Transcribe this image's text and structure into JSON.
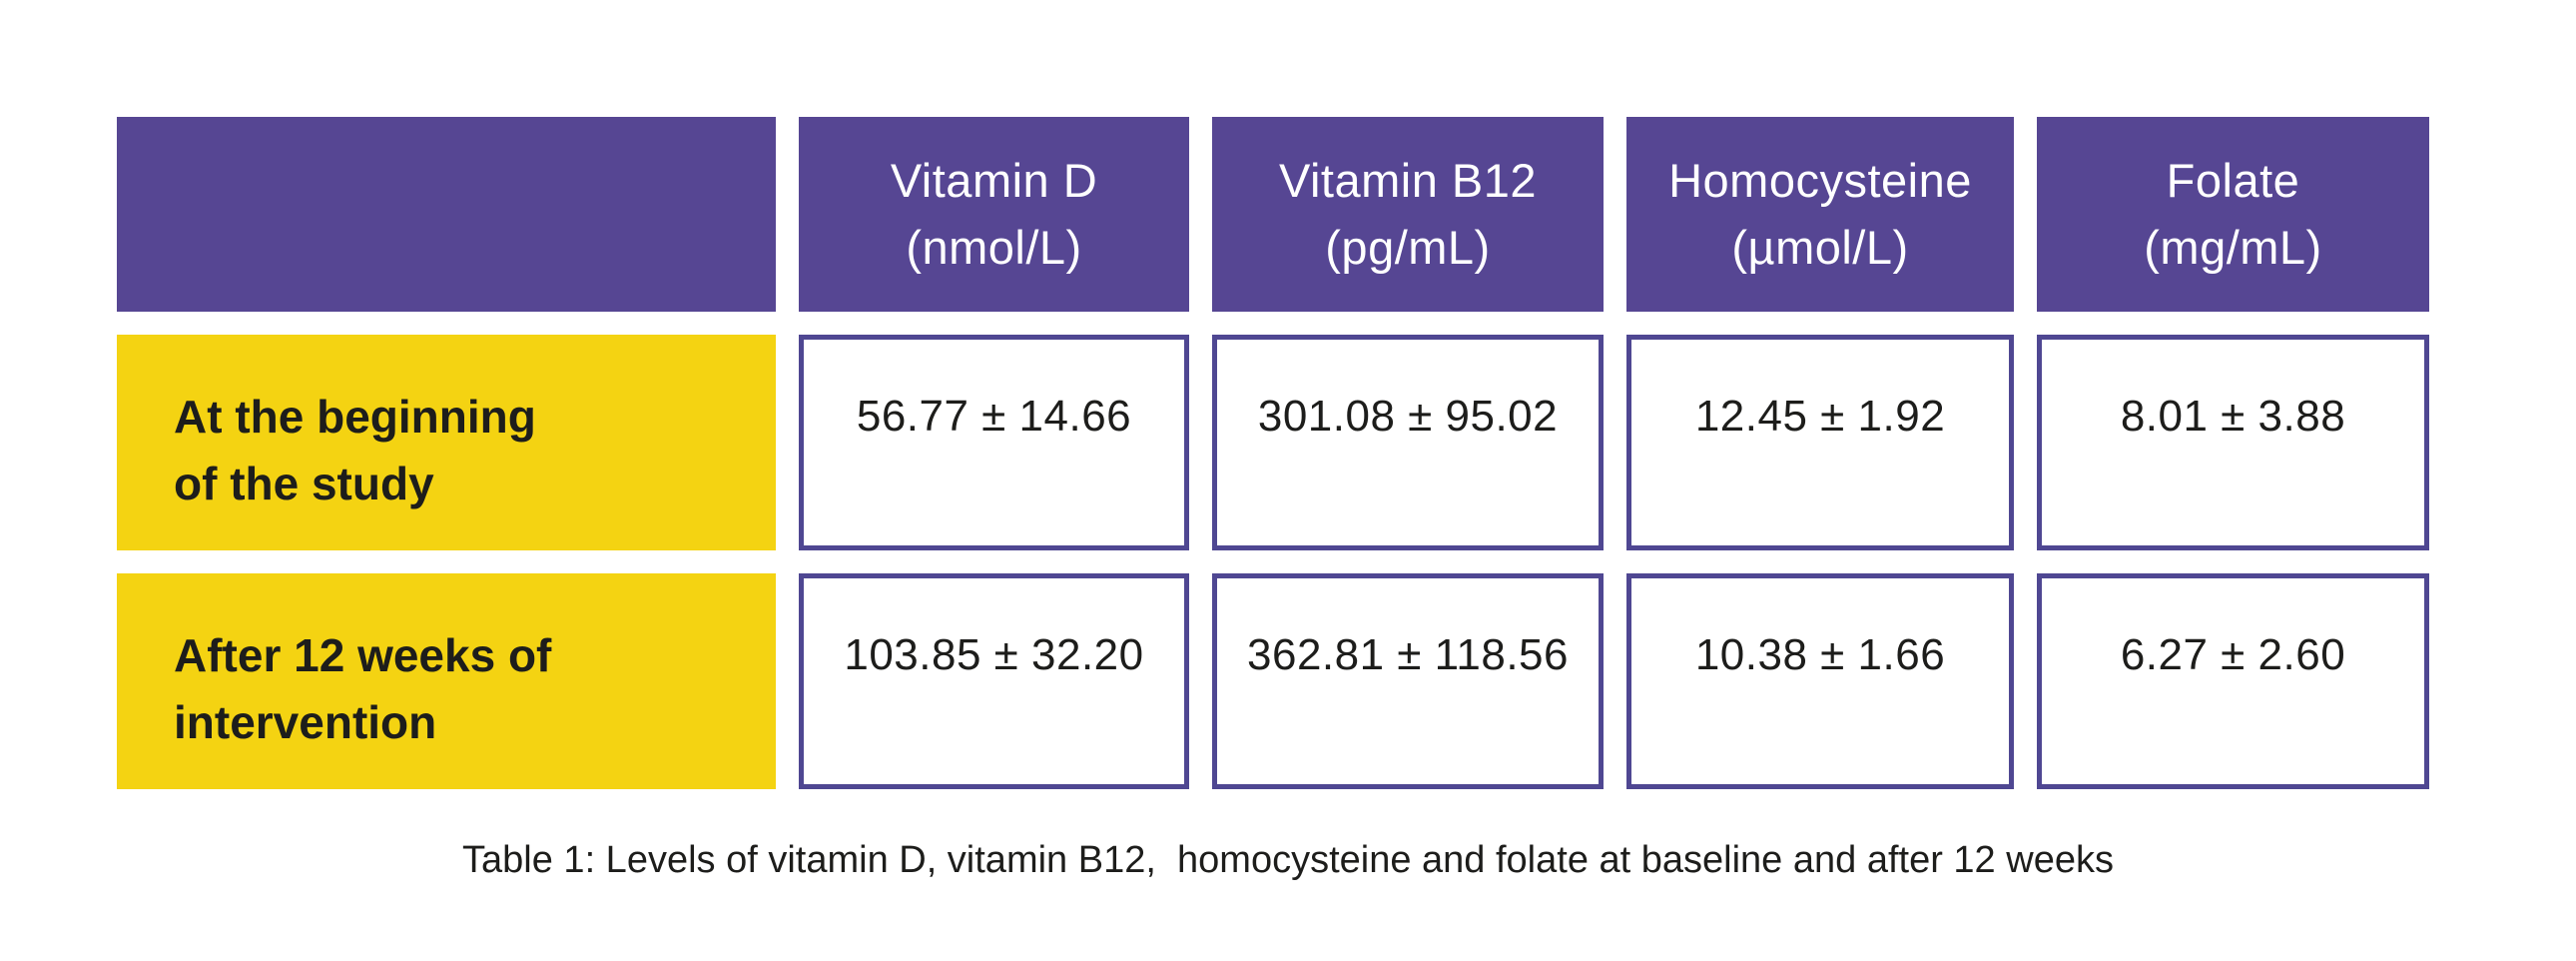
{
  "colors": {
    "header_bg": "#564693",
    "header_text": "#ffffff",
    "row_label_bg": "#F4D312",
    "cell_border": "#4F4792",
    "body_text": "#1d1d1b",
    "page_bg": "#ffffff"
  },
  "table": {
    "columns": [
      {
        "label": "Vitamin D",
        "unit": "(nmol/L)"
      },
      {
        "label": "Vitamin B12",
        "unit": "(pg/mL)"
      },
      {
        "label": "Homocysteine",
        "unit": "(µmol/L)"
      },
      {
        "label": "Folate",
        "unit": "(mg/mL)"
      }
    ],
    "rows": [
      {
        "label_line1": "At the beginning",
        "label_line2": "of the study",
        "values": [
          "56.77 ± 14.66",
          "301.08 ± 95.02",
          "12.45 ± 1.92",
          "8.01 ± 3.88"
        ]
      },
      {
        "label_line1": "After 12 weeks of",
        "label_line2": "intervention",
        "values": [
          "103.85 ± 32.20",
          "362.81 ± 118.56",
          "10.38 ± 1.66",
          "6.27 ± 2.60"
        ]
      }
    ]
  },
  "caption": "Table 1: Levels of vitamin D, vitamin B12,  homocysteine and folate at baseline and after 12 weeks",
  "chart_data": {
    "type": "table",
    "title": "Table 1: Levels of vitamin D, vitamin B12,  homocysteine and folate at baseline and after 12 weeks",
    "columns": [
      "",
      "Vitamin D (nmol/L)",
      "Vitamin B12 (pg/mL)",
      "Homocysteine (µmol/L)",
      "Folate (mg/mL)"
    ],
    "rows": [
      [
        "At the beginning of the study",
        "56.77 ± 14.66",
        "301.08 ± 95.02",
        "12.45 ± 1.92",
        "8.01 ± 3.88"
      ],
      [
        "After 12 weeks of intervention",
        "103.85 ± 32.20",
        "362.81 ± 118.56",
        "10.38 ± 1.66",
        "6.27 ± 2.60"
      ]
    ],
    "series": [
      {
        "name": "Vitamin D (nmol/L)",
        "baseline_mean": 56.77,
        "baseline_sd": 14.66,
        "week12_mean": 103.85,
        "week12_sd": 32.2
      },
      {
        "name": "Vitamin B12 (pg/mL)",
        "baseline_mean": 301.08,
        "baseline_sd": 95.02,
        "week12_mean": 362.81,
        "week12_sd": 118.56
      },
      {
        "name": "Homocysteine (µmol/L)",
        "baseline_mean": 12.45,
        "baseline_sd": 1.92,
        "week12_mean": 10.38,
        "week12_sd": 1.66
      },
      {
        "name": "Folate (mg/mL)",
        "baseline_mean": 8.01,
        "baseline_sd": 3.88,
        "week12_mean": 6.27,
        "week12_sd": 2.6
      }
    ]
  }
}
